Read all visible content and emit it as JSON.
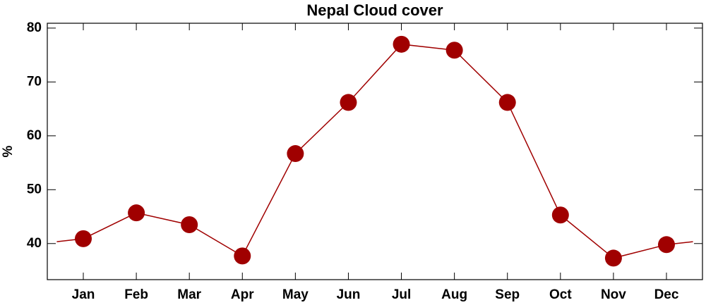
{
  "chart_data": {
    "type": "line",
    "title": "Nepal Cloud cover",
    "y_label": "%",
    "categories": [
      "Jan",
      "Feb",
      "Mar",
      "Apr",
      "May",
      "Jun",
      "Jul",
      "Aug",
      "Sep",
      "Oct",
      "Nov",
      "Dec"
    ],
    "values": [
      40.9,
      45.7,
      43.5,
      37.7,
      56.7,
      66.2,
      77.0,
      75.9,
      66.2,
      45.3,
      37.3,
      39.8
    ],
    "color": "#a00000",
    "ylim": [
      33.3,
      80.9
    ],
    "yticks": [
      40,
      50,
      60,
      70,
      80
    ]
  }
}
